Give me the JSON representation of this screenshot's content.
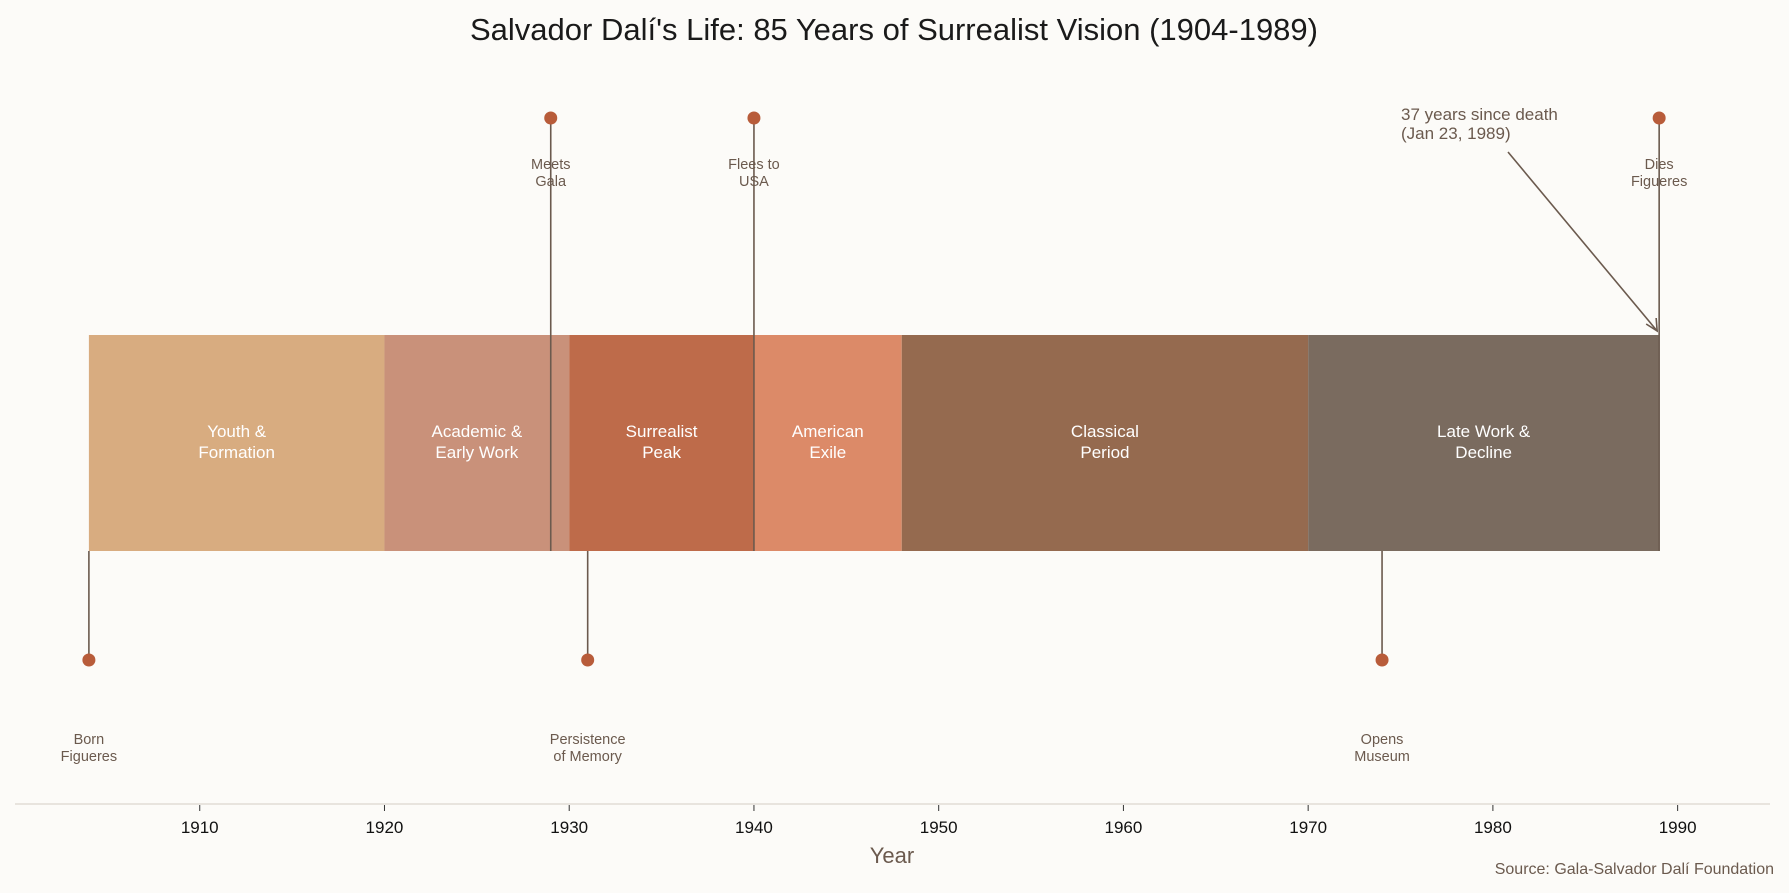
{
  "chart_data": {
    "type": "timeline",
    "title": "Salvador Dalí's Life: 85 Years of Surrealist Vision (1904-1989)",
    "xlabel": "Year",
    "xlim": [
      1900,
      1995
    ],
    "xticks": [
      1910,
      1920,
      1930,
      1940,
      1950,
      1960,
      1970,
      1980,
      1990
    ],
    "grid": false,
    "periods": [
      {
        "label": "Youth &\nFormation",
        "start": 1904,
        "end": 1920,
        "color": "#D8AC80"
      },
      {
        "label": "Academic &\nEarly Work",
        "start": 1920,
        "end": 1930,
        "color": "#C9917A"
      },
      {
        "label": "Surrealist\nPeak",
        "start": 1930,
        "end": 1940,
        "color": "#BE6B4A"
      },
      {
        "label": "American\nExile",
        "start": 1940,
        "end": 1948,
        "color": "#DC8A68"
      },
      {
        "label": "Classical\nPeriod",
        "start": 1948,
        "end": 1970,
        "color": "#956A4F"
      },
      {
        "label": "Late Work &\nDecline",
        "start": 1970,
        "end": 1989,
        "color": "#7A6B5F"
      }
    ],
    "events": [
      {
        "year": 1904,
        "label": "Born\nFigueres",
        "position": "below"
      },
      {
        "year": 1929,
        "label": "Meets\nGala",
        "position": "above"
      },
      {
        "year": 1931,
        "label": "Persistence\nof Memory",
        "position": "below"
      },
      {
        "year": 1940,
        "label": "Flees to\nUSA",
        "position": "above"
      },
      {
        "year": 1974,
        "label": "Opens\nMuseum",
        "position": "below"
      },
      {
        "year": 1989,
        "label": "Dies\nFigueres",
        "position": "above"
      }
    ],
    "annotation": {
      "text": "37 years since death\n(Jan 23, 1989)",
      "target_year": 1989
    },
    "source": "Source: Gala-Salvador Dalí Foundation",
    "colors": {
      "background": "#FCFBF8",
      "marker": "#B85C3A",
      "stem": "#6B5A4E",
      "text": "#6B5A4E"
    }
  }
}
